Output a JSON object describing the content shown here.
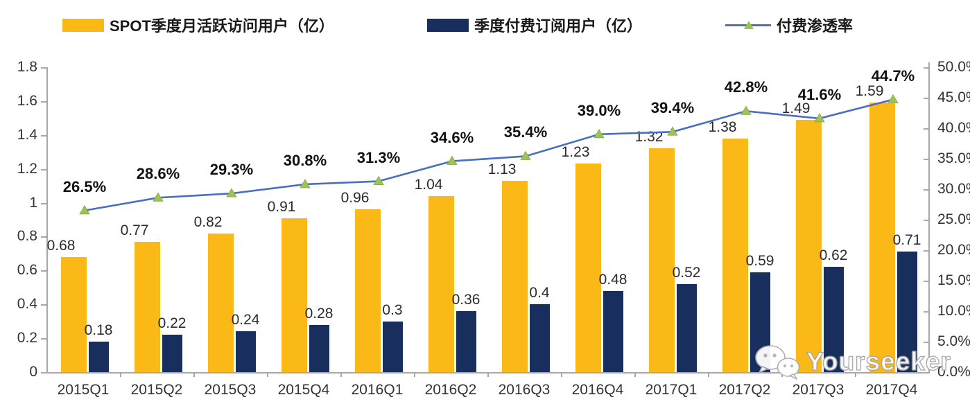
{
  "legend": {
    "items": [
      {
        "label": "SPOT季度月活跃访问用户（亿）",
        "swatch": "bar",
        "color": "#fbb917"
      },
      {
        "label": "季度付费订阅用户（亿）",
        "swatch": "bar",
        "color": "#182f5e"
      },
      {
        "label": "付费渗透率",
        "swatch": "line",
        "color": "#4a6fc0",
        "marker_color": "#9cc353"
      }
    ]
  },
  "chart_data": {
    "type": "bar+line combo, dual axis",
    "categories": [
      "2015Q1",
      "2015Q2",
      "2015Q3",
      "2015Q4",
      "2016Q1",
      "2016Q2",
      "2016Q3",
      "2016Q4",
      "2017Q1",
      "2017Q2",
      "2017Q3",
      "2017Q4"
    ],
    "series": [
      {
        "name": "SPOT季度月活跃访问用户（亿）",
        "type": "bar",
        "axis": "left",
        "color": "#fbb917",
        "values": [
          0.68,
          0.77,
          0.82,
          0.91,
          0.96,
          1.04,
          1.13,
          1.23,
          1.32,
          1.38,
          1.49,
          1.59
        ],
        "labels": [
          "0.68",
          "0.77",
          "0.82",
          "0.91",
          "0.96",
          "1.04",
          "1.13",
          "1.23",
          "1.32",
          "1.38",
          "1.49",
          "1.59"
        ]
      },
      {
        "name": "季度付费订阅用户（亿）",
        "type": "bar",
        "axis": "left",
        "color": "#182f5e",
        "values": [
          0.18,
          0.22,
          0.24,
          0.28,
          0.3,
          0.36,
          0.4,
          0.48,
          0.52,
          0.59,
          0.62,
          0.71
        ],
        "labels": [
          "0.18",
          "0.22",
          "0.24",
          "0.28",
          "0.3",
          "0.36",
          "0.4",
          "0.48",
          "0.52",
          "0.59",
          "0.62",
          "0.71"
        ]
      },
      {
        "name": "付费渗透率",
        "type": "line",
        "axis": "right",
        "color": "#4a6fc0",
        "marker": "triangle-up",
        "marker_color": "#9cc353",
        "values": [
          26.5,
          28.6,
          29.3,
          30.8,
          31.3,
          34.6,
          35.4,
          39.0,
          39.4,
          42.8,
          41.6,
          44.7
        ],
        "labels": [
          "26.5%",
          "28.6%",
          "29.3%",
          "30.8%",
          "31.3%",
          "34.6%",
          "35.4%",
          "39.0%",
          "39.4%",
          "42.8%",
          "41.6%",
          "44.7%"
        ]
      }
    ],
    "left_axis": {
      "min": 0,
      "max": 1.8,
      "ticks": [
        "1.8",
        "1.6",
        "1.4",
        "1.2",
        "1",
        "0.8",
        "0.6",
        "0.4",
        "0.2",
        "0"
      ]
    },
    "right_axis": {
      "min": 0,
      "max": 50,
      "ticks": [
        "50.0%",
        "45.0%",
        "40.0%",
        "35.0%",
        "30.0%",
        "25.0%",
        "20.0%",
        "15.0%",
        "10.0%",
        "5.0%",
        "0.0%"
      ]
    },
    "grid": false,
    "legend_position": "top",
    "title": ""
  },
  "watermark": {
    "text": "Yourseeker",
    "icon": "wechat-icon"
  }
}
